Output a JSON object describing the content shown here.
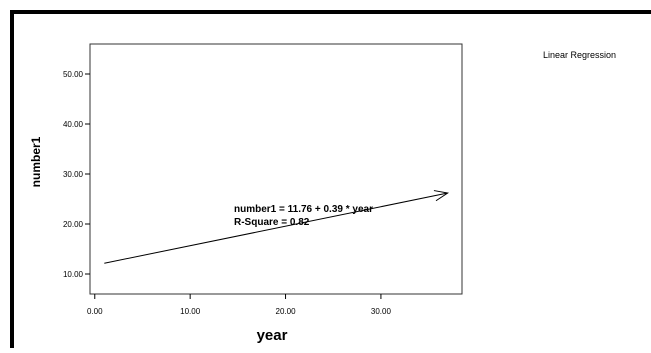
{
  "chart_data": {
    "type": "scatter",
    "xlabel": "year",
    "ylabel": "number1",
    "xlim": [
      -0.5,
      38.5
    ],
    "ylim": [
      6,
      56
    ],
    "x_ticks": [
      {
        "value": 0,
        "label": "0.00"
      },
      {
        "value": 10,
        "label": "10.00"
      },
      {
        "value": 20,
        "label": "20.00"
      },
      {
        "value": 30,
        "label": "30.00"
      }
    ],
    "y_ticks": [
      {
        "value": 10,
        "label": "10.00"
      },
      {
        "value": 20,
        "label": "20.00"
      },
      {
        "value": 30,
        "label": "30.00"
      },
      {
        "value": 40,
        "label": "40.00"
      },
      {
        "value": 50,
        "label": "50.00"
      }
    ],
    "fit": {
      "type": "linear",
      "intercept": 11.76,
      "slope": 0.39,
      "x_range": [
        1,
        37
      ],
      "equation_text": "number1 = 11.76 + 0.39 * year",
      "r_square_text": "R-Square = 0.82"
    },
    "legend": {
      "text": "Linear Regression",
      "position": "top-right"
    },
    "grid": false
  }
}
